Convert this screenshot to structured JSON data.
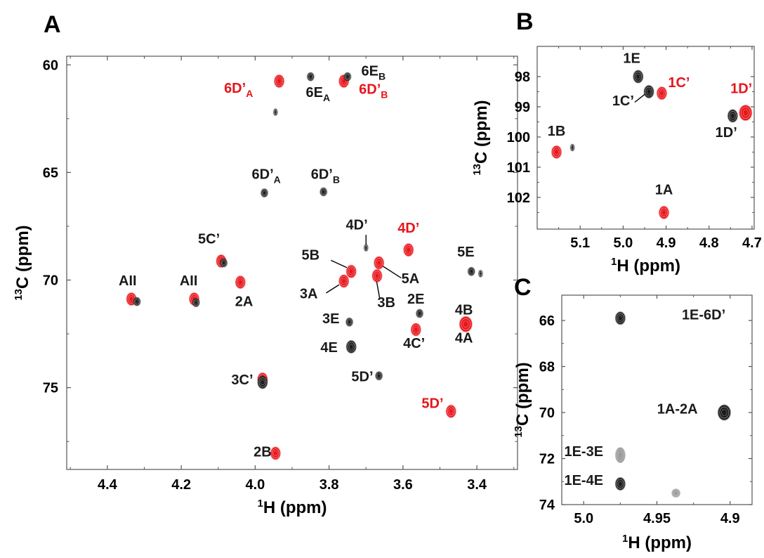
{
  "colors": {
    "red": "#e8141c",
    "black": "#1a1a1a",
    "frame": "#555555"
  },
  "chart_data": [
    {
      "panel": "A",
      "type": "scatter",
      "xlabel": {
        "sup": "1",
        "main": "H (ppm)"
      },
      "ylabel": {
        "sup": "13",
        "main": "C (ppm)"
      },
      "xlim": [
        4.51,
        3.29
      ],
      "ylim": [
        59.6,
        78.8
      ],
      "xticks": [
        4.4,
        4.2,
        4.0,
        3.8,
        3.6,
        3.4
      ],
      "xtick_labels": [
        "4.4",
        "4.2",
        "4.0",
        "3.8",
        "3.6",
        "3.4"
      ],
      "yticks": [
        60,
        65,
        70,
        75
      ],
      "ytick_labels": [
        "60",
        "65",
        "70",
        "75"
      ],
      "series": [
        {
          "color": "red",
          "points": [
            {
              "x": 4.335,
              "y": 70.88,
              "size": "m"
            },
            {
              "x": 4.165,
              "y": 70.88,
              "size": "m"
            },
            {
              "x": 4.092,
              "y": 69.12,
              "size": "m"
            },
            {
              "x": 4.04,
              "y": 70.1,
              "size": "m"
            },
            {
              "x": 3.98,
              "y": 74.6,
              "size": "m"
            },
            {
              "x": 3.945,
              "y": 78.05,
              "size": "m"
            },
            {
              "x": 3.935,
              "y": 60.76,
              "size": "m"
            },
            {
              "x": 3.76,
              "y": 60.76,
              "size": "m"
            },
            {
              "x": 3.76,
              "y": 70.05,
              "size": "m"
            },
            {
              "x": 3.74,
              "y": 69.6,
              "size": "m"
            },
            {
              "x": 3.67,
              "y": 69.8,
              "size": "m"
            },
            {
              "x": 3.665,
              "y": 69.2,
              "size": "m"
            },
            {
              "x": 3.585,
              "y": 68.6,
              "size": "m"
            },
            {
              "x": 3.565,
              "y": 72.3,
              "size": "m"
            },
            {
              "x": 3.47,
              "y": 76.1,
              "size": "m"
            },
            {
              "x": 3.43,
              "y": 72.05,
              "size": "l"
            }
          ]
        },
        {
          "color": "black",
          "points": [
            {
              "x": 4.32,
              "y": 71.0,
              "size": "s"
            },
            {
              "x": 4.16,
              "y": 71.05,
              "size": "s"
            },
            {
              "x": 4.085,
              "y": 69.2,
              "size": "s"
            },
            {
              "x": 3.98,
              "y": 74.75,
              "size": "m"
            },
            {
              "x": 3.975,
              "y": 65.95,
              "size": "s"
            },
            {
              "x": 3.945,
              "y": 62.2,
              "size": "xs"
            },
            {
              "x": 3.85,
              "y": 60.55,
              "size": "s"
            },
            {
              "x": 3.815,
              "y": 65.9,
              "size": "s"
            },
            {
              "x": 3.75,
              "y": 60.55,
              "size": "s"
            },
            {
              "x": 3.745,
              "y": 71.95,
              "size": "s"
            },
            {
              "x": 3.74,
              "y": 73.1,
              "size": "m"
            },
            {
              "x": 3.7,
              "y": 68.5,
              "size": "xs"
            },
            {
              "x": 3.665,
              "y": 74.45,
              "size": "s"
            },
            {
              "x": 3.555,
              "y": 71.55,
              "size": "s"
            },
            {
              "x": 3.415,
              "y": 69.6,
              "size": "s"
            },
            {
              "x": 3.39,
              "y": 69.7,
              "size": "xs"
            }
          ]
        }
      ],
      "annotations": [
        {
          "main": "AII",
          "color": "black",
          "x": 4.345,
          "y": 70.25
        },
        {
          "main": "AII",
          "color": "black",
          "x": 4.18,
          "y": 70.25
        },
        {
          "main": "5C’",
          "color": "black",
          "x": 4.125,
          "y": 68.3
        },
        {
          "main": "2A",
          "color": "black",
          "x": 4.03,
          "y": 71.2
        },
        {
          "main": "3C’",
          "color": "black",
          "x": 4.035,
          "y": 74.85
        },
        {
          "main": "2B",
          "color": "black",
          "x": 3.98,
          "y": 78.2
        },
        {
          "main": "6D’",
          "sub": "A",
          "color": "red",
          "x": 4.045,
          "y": 61.3
        },
        {
          "main": "6E",
          "sub": "A",
          "color": "black",
          "x": 3.83,
          "y": 61.5
        },
        {
          "main": "6E",
          "sub": "B",
          "color": "black",
          "x": 3.68,
          "y": 60.5
        },
        {
          "main": "6D’",
          "sub": "B",
          "color": "red",
          "x": 3.68,
          "y": 61.35
        },
        {
          "main": "6D’",
          "sub": "A",
          "color": "black",
          "x": 3.97,
          "y": 65.3
        },
        {
          "main": "6D’",
          "sub": "B",
          "color": "black",
          "x": 3.81,
          "y": 65.3
        },
        {
          "main": "4D’",
          "color": "black",
          "x": 3.725,
          "y": 67.65
        },
        {
          "main": "4D’",
          "color": "red",
          "x": 3.585,
          "y": 67.8
        },
        {
          "main": "5B",
          "color": "black",
          "x": 3.85,
          "y": 69.05
        },
        {
          "main": "5A",
          "color": "black",
          "x": 3.58,
          "y": 70.15
        },
        {
          "main": "3A",
          "color": "black",
          "x": 3.855,
          "y": 70.85
        },
        {
          "main": "3B",
          "color": "black",
          "x": 3.645,
          "y": 71.25
        },
        {
          "main": "5E",
          "color": "black",
          "x": 3.43,
          "y": 68.9
        },
        {
          "main": "2E",
          "color": "black",
          "x": 3.565,
          "y": 71.1
        },
        {
          "main": "3E",
          "color": "black",
          "x": 3.795,
          "y": 72.0
        },
        {
          "main": "4B",
          "color": "black",
          "x": 3.435,
          "y": 71.6
        },
        {
          "main": "4E",
          "color": "black",
          "x": 3.8,
          "y": 73.35
        },
        {
          "main": "4C’",
          "color": "black",
          "x": 3.57,
          "y": 73.15
        },
        {
          "main": "4A",
          "color": "black",
          "x": 3.435,
          "y": 72.9
        },
        {
          "main": "5D’",
          "color": "black",
          "x": 3.71,
          "y": 74.7
        },
        {
          "main": "5D’",
          "color": "red",
          "x": 3.52,
          "y": 75.95
        }
      ],
      "leader_lines": [
        {
          "x1": 3.795,
          "y1": 69.08,
          "x2": 3.752,
          "y2": 69.42
        },
        {
          "x1": 3.605,
          "y1": 69.9,
          "x2": 3.655,
          "y2": 69.35
        },
        {
          "x1": 3.808,
          "y1": 70.6,
          "x2": 3.773,
          "y2": 70.22
        },
        {
          "x1": 3.663,
          "y1": 70.85,
          "x2": 3.672,
          "y2": 70.0
        },
        {
          "x1": 3.7,
          "y1": 67.9,
          "x2": 3.7,
          "y2": 68.35
        }
      ]
    },
    {
      "panel": "B",
      "type": "scatter",
      "xlabel": {
        "sup": "1",
        "main": "H (ppm)"
      },
      "ylabel": {
        "sup": "13",
        "main": "C (ppm)"
      },
      "xlim": [
        5.2,
        4.695
      ],
      "ylim": [
        97.0,
        103.05
      ],
      "xticks": [
        5.1,
        5.0,
        4.9,
        4.8,
        4.7
      ],
      "xtick_labels": [
        "5.1",
        "5.0",
        "4.9",
        "4.8",
        "4.7"
      ],
      "yticks": [
        98,
        99,
        100,
        101,
        102
      ],
      "ytick_labels": [
        "98",
        "99",
        "100",
        "101",
        "102"
      ],
      "series": [
        {
          "color": "red",
          "points": [
            {
              "x": 5.155,
              "y": 100.5,
              "size": "m"
            },
            {
              "x": 4.91,
              "y": 98.55,
              "size": "m"
            },
            {
              "x": 4.905,
              "y": 102.5,
              "size": "m"
            },
            {
              "x": 4.715,
              "y": 99.2,
              "size": "l"
            }
          ]
        },
        {
          "color": "black",
          "points": [
            {
              "x": 5.118,
              "y": 100.35,
              "size": "xs"
            },
            {
              "x": 4.965,
              "y": 98.0,
              "size": "m"
            },
            {
              "x": 4.94,
              "y": 98.5,
              "size": "m"
            },
            {
              "x": 4.745,
              "y": 99.3,
              "size": "m"
            }
          ]
        }
      ],
      "annotations": [
        {
          "main": "1E",
          "color": "black",
          "x": 4.98,
          "y": 97.55
        },
        {
          "main": "1C’",
          "color": "black",
          "x": 5.0,
          "y": 98.95
        },
        {
          "main": "1C’",
          "color": "red",
          "x": 4.87,
          "y": 98.35
        },
        {
          "main": "1D’",
          "color": "red",
          "x": 4.725,
          "y": 98.55
        },
        {
          "main": "1D’",
          "color": "black",
          "x": 4.76,
          "y": 100.0
        },
        {
          "main": "1B",
          "color": "black",
          "x": 5.155,
          "y": 99.95
        },
        {
          "main": "1A",
          "color": "black",
          "x": 4.905,
          "y": 101.9
        }
      ],
      "leader_lines": [
        {
          "x1": 4.973,
          "y1": 98.85,
          "x2": 4.949,
          "y2": 98.58
        }
      ]
    },
    {
      "panel": "C",
      "type": "scatter",
      "xlabel": {
        "sup": "1",
        "main": "H (ppm)"
      },
      "ylabel": {
        "sup": "13",
        "main": "C (ppm)"
      },
      "xlim": [
        5.015,
        4.885
      ],
      "ylim": [
        64.9,
        74.0
      ],
      "xticks": [
        5.0,
        4.95,
        4.9
      ],
      "xtick_labels": [
        "5.0",
        "4.95",
        "4.9"
      ],
      "yticks": [
        66,
        68,
        70,
        72,
        74
      ],
      "ytick_labels": [
        "66",
        "68",
        "70",
        "72",
        "74"
      ],
      "series": [
        {
          "color": "black",
          "points": [
            {
              "x": 4.975,
              "y": 65.9,
              "size": "m"
            },
            {
              "x": 4.904,
              "y": 70.0,
              "size": "l"
            },
            {
              "x": 4.975,
              "y": 71.85,
              "size": "gray"
            },
            {
              "x": 4.975,
              "y": 73.1,
              "size": "m"
            },
            {
              "x": 4.937,
              "y": 73.5,
              "size": "xsgray"
            }
          ]
        }
      ],
      "annotations": [
        {
          "main": "1E-6D’",
          "color": "black",
          "x": 4.933,
          "y": 65.95,
          "anchor": "start"
        },
        {
          "main": "1A-2A",
          "color": "black",
          "x": 4.936,
          "y": 70.05
        },
        {
          "main": "1E-3E",
          "color": "black",
          "x": 5.0,
          "y": 71.9
        },
        {
          "main": "1E-4E",
          "color": "black",
          "x": 5.0,
          "y": 73.15
        }
      ],
      "leader_lines": []
    }
  ]
}
